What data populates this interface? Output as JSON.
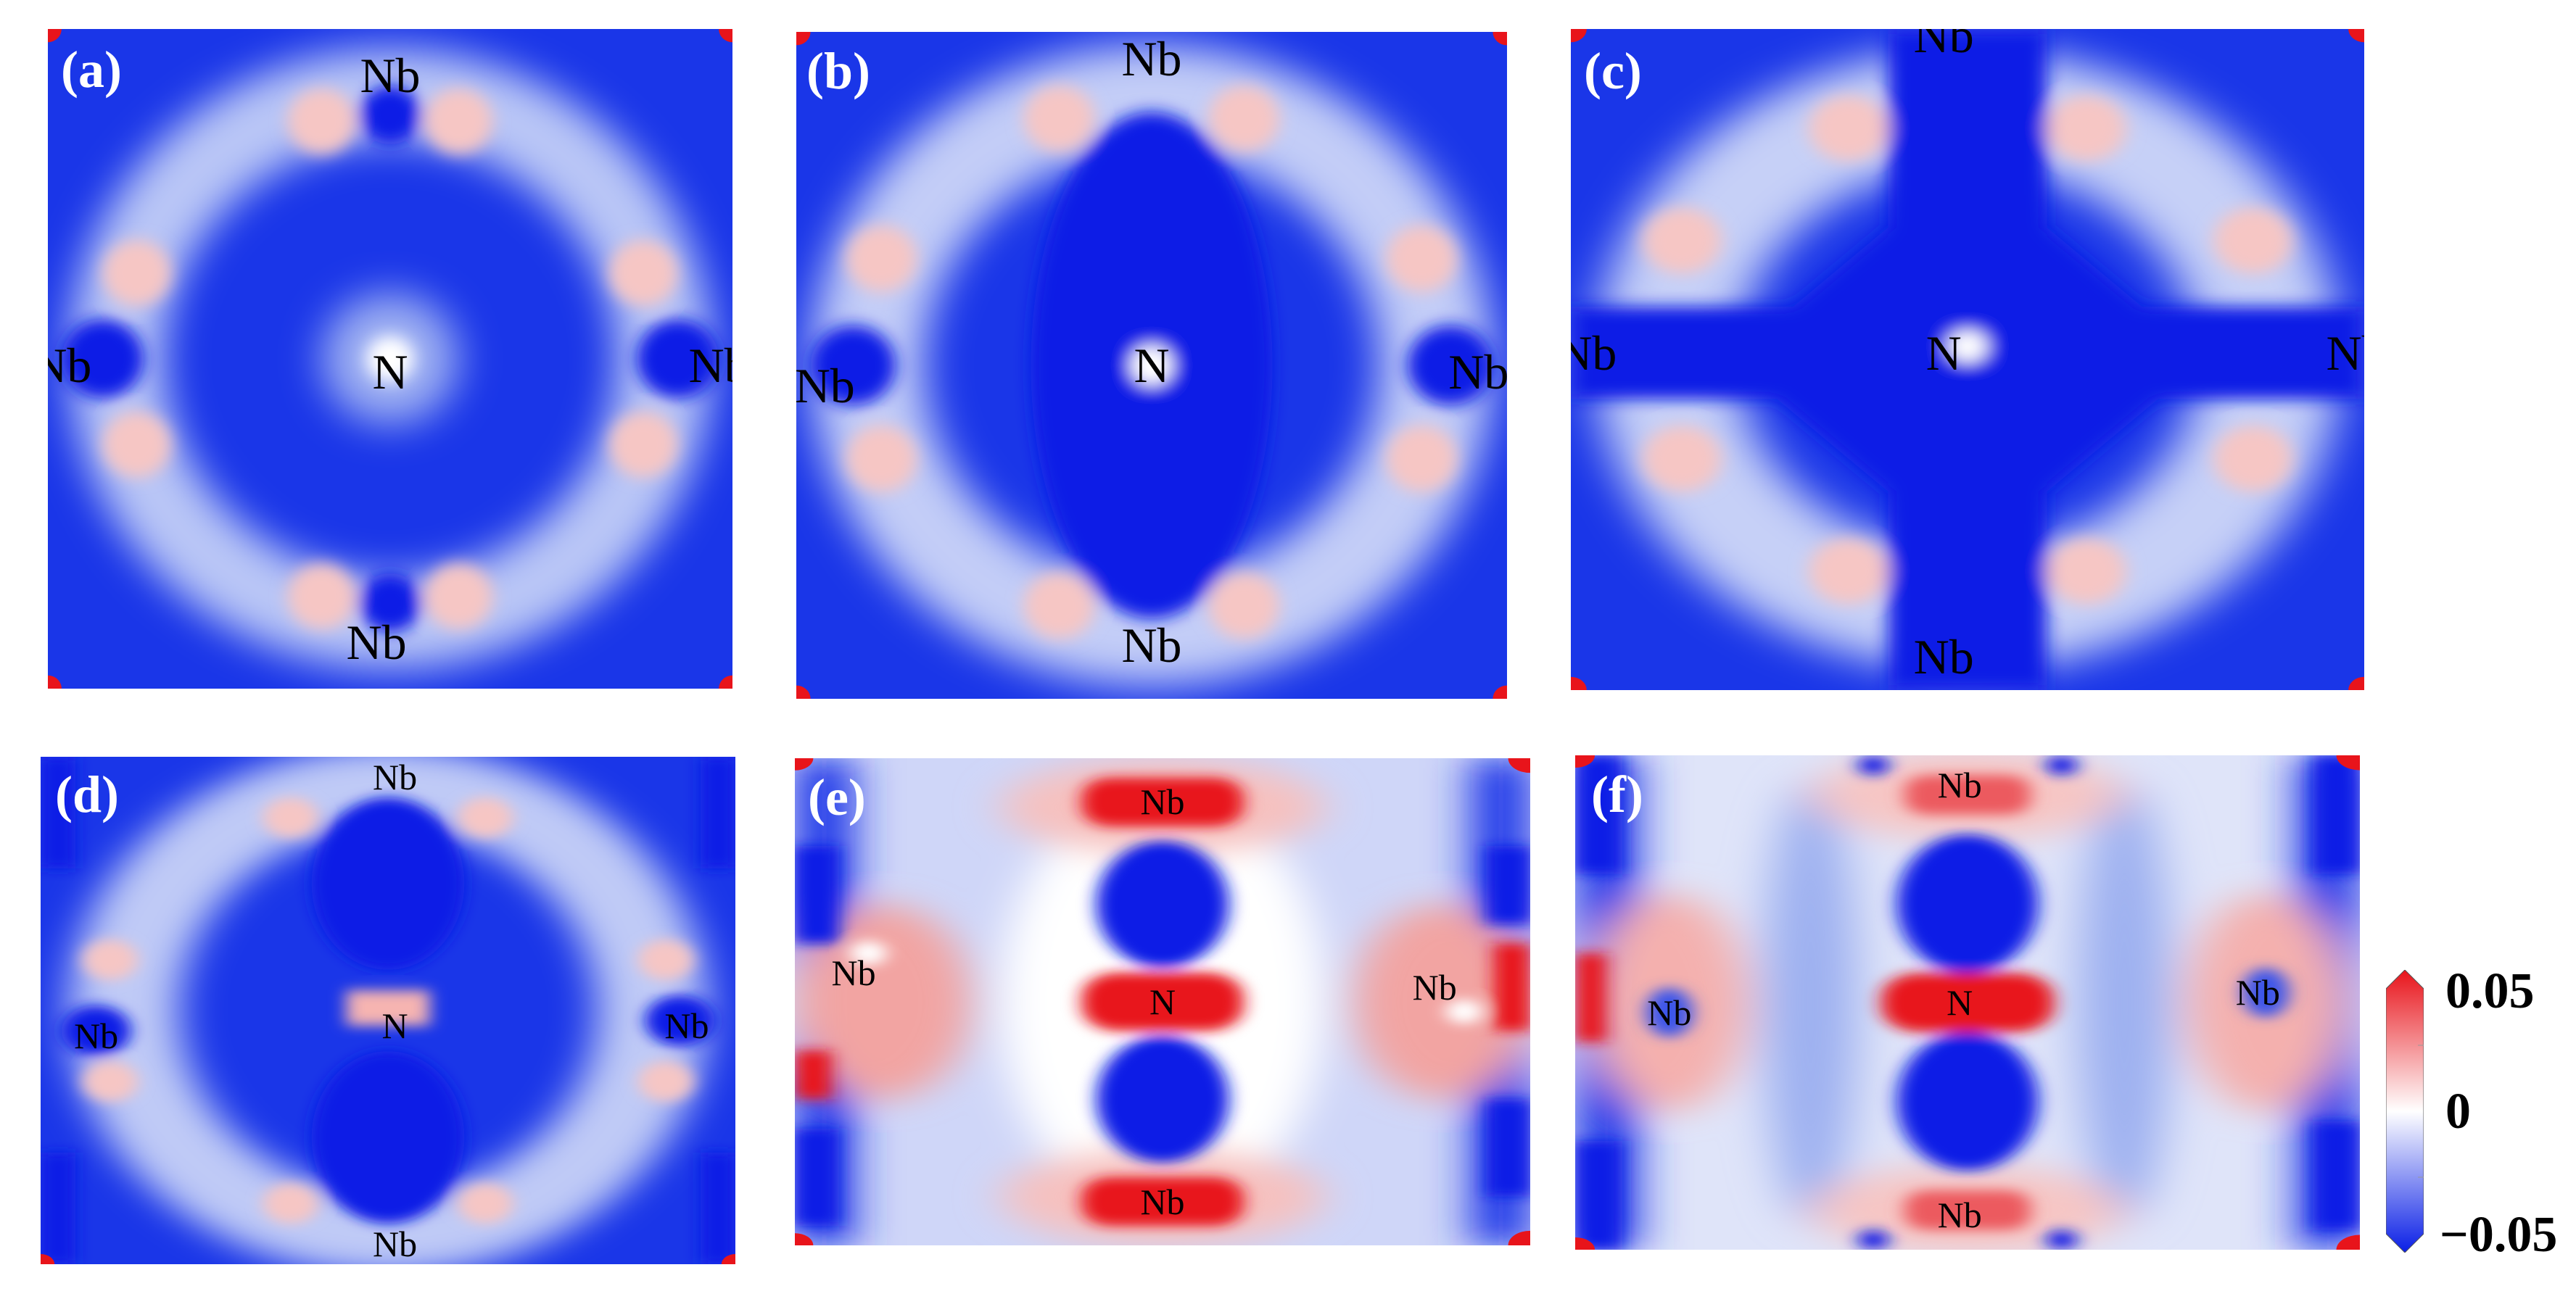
{
  "panels": [
    {
      "label": "(a)",
      "atoms": {
        "top": "Nb",
        "bottom": "Nb",
        "left": "Nb",
        "right": "Nb",
        "center": "N"
      }
    },
    {
      "label": "(b)",
      "atoms": {
        "top": "Nb",
        "bottom": "Nb",
        "left": "Nb",
        "right": "Nb",
        "center": "N"
      }
    },
    {
      "label": "(c)",
      "atoms": {
        "top": "Nb",
        "bottom": "Nb",
        "left": "Nb",
        "right": "Nb",
        "center": "N"
      }
    },
    {
      "label": "(d)",
      "atoms": {
        "top": "Nb",
        "bottom": "Nb",
        "left": "Nb",
        "right": "Nb",
        "center": "N"
      }
    },
    {
      "label": "(e)",
      "atoms": {
        "top": "Nb",
        "bottom": "Nb",
        "left": "Nb",
        "right": "Nb",
        "center": "N"
      }
    },
    {
      "label": "(f)",
      "atoms": {
        "top": "Nb",
        "bottom": "Nb",
        "left": "Nb",
        "right": "Nb",
        "center": "N"
      }
    }
  ],
  "colorbar": {
    "max_label": "0.05",
    "mid_label": "0",
    "min_label": "−0.05",
    "colors": {
      "max": "#e8141b",
      "mid": "#ffffff",
      "min": "#0a1fe6"
    }
  }
}
